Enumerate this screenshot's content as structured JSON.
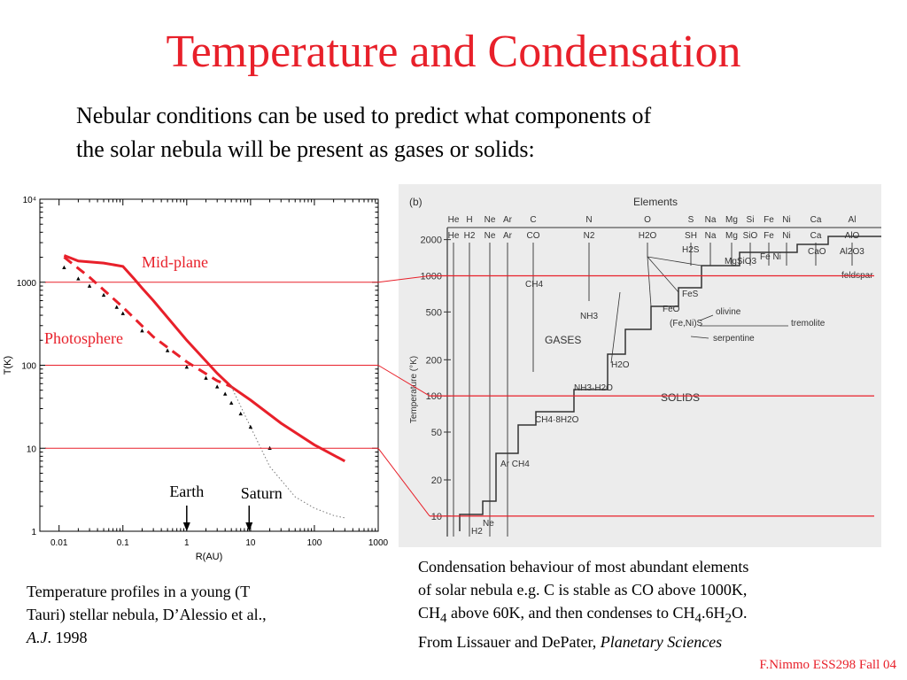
{
  "slide": {
    "title": "Temperature and Condensation",
    "intro_line1": "Nebular conditions can be used to predict what components of",
    "intro_line2": "the solar nebula will be present as gases or solids:",
    "credit": "F.Nimmo ESS298 Fall 04"
  },
  "caption_left": {
    "l1": "Temperature profiles in a young (T",
    "l2": "Tauri) stellar nebula, D’Alessio et al.,",
    "l3_journal": "A.J",
    "l3_rest": ". 1998"
  },
  "caption_right": {
    "l1": "Condensation behaviour of most abundant elements",
    "l2": "of solar nebula e.g. C is stable as CO above 1000K,",
    "l3a": "CH",
    "l3a_sub": "4",
    "l3b": " above 60K, and then condenses to CH",
    "l3b_sub": "4",
    "l3c": ".6H",
    "l3c_sub": "2",
    "l3d": "O.",
    "l4_prefix": "From Lissauer and DePater, ",
    "l4_book": "Planetary Sciences"
  },
  "colors": {
    "accent": "#e8202a",
    "gridline": "#e8202a"
  },
  "chart_data": [
    {
      "type": "line",
      "xlabel": "R(AU)",
      "ylabel": "T(K)",
      "xscale": "log",
      "yscale": "log",
      "xlim": [
        0.005,
        1000
      ],
      "ylim": [
        1,
        10000
      ],
      "x_ticks": [
        "0.01",
        "0.1",
        "1",
        "10",
        "100",
        "1000"
      ],
      "y_ticks": [
        "1",
        "10",
        "100",
        "1000",
        "10⁴"
      ],
      "reference_lines_T": [
        1000,
        100,
        10
      ],
      "annotations": [
        {
          "text": "Mid-plane",
          "color": "#e8202a"
        },
        {
          "text": "Photosphere",
          "color": "#e8202a"
        },
        {
          "text": "Earth",
          "x": 1
        },
        {
          "text": "Saturn",
          "x": 9.5
        }
      ],
      "series": [
        {
          "style": "solid-red",
          "x": [
            0.012,
            0.02,
            0.05,
            0.1,
            0.15,
            0.2,
            0.3,
            1,
            3,
            5,
            10,
            30,
            100,
            300
          ],
          "y": [
            2100,
            1800,
            1700,
            1550,
            1100,
            850,
            600,
            200,
            80,
            55,
            38,
            20,
            11,
            7
          ]
        },
        {
          "style": "dashed-red",
          "x": [
            0.012,
            0.03,
            0.1,
            0.3,
            1,
            3,
            5
          ],
          "y": [
            2000,
            1150,
            500,
            220,
            110,
            65,
            55
          ]
        },
        {
          "style": "dotted-gray",
          "x": [
            5,
            10,
            20,
            50,
            100,
            200,
            300
          ],
          "y": [
            55,
            18,
            6,
            2.6,
            1.9,
            1.55,
            1.45
          ]
        },
        {
          "style": "triangles",
          "x": [
            0.012,
            0.02,
            0.03,
            0.05,
            0.08,
            0.1,
            0.2,
            0.5,
            1,
            2,
            3,
            4,
            5,
            7,
            10,
            20
          ],
          "y": [
            1500,
            1100,
            900,
            700,
            500,
            420,
            260,
            150,
            95,
            70,
            55,
            45,
            35,
            26,
            18,
            10
          ]
        }
      ]
    },
    {
      "type": "diagram",
      "panel_label": "(b)",
      "header": "Elements",
      "ylabel": "Temperature (°K)",
      "yscale": "log",
      "ylim": [
        8,
        2200
      ],
      "y_ticks": [
        2000,
        1000,
        500,
        200,
        100,
        50,
        20,
        10
      ],
      "reference_lines_T": [
        1000,
        100,
        10
      ],
      "elements": [
        "He",
        "H",
        "Ne",
        "Ar",
        "C",
        "N",
        "O",
        "S",
        "Na",
        "Mg",
        "Si",
        "Fe",
        "Ni",
        "Ca",
        "Al"
      ],
      "gas_species": [
        "He",
        "H2",
        "Ne",
        "Ar",
        "CO",
        "N2",
        "H2O",
        "SH",
        "Na",
        "Mg",
        "SiO",
        "Fe",
        "Ni",
        "Ca",
        "AlO"
      ],
      "region_labels": [
        "GASES",
        "SOLIDS"
      ],
      "labels": [
        "CH4",
        "NH3",
        "H2O",
        "NH3·H2O",
        "CH4·8H2O",
        "Ar CH4",
        "Ne",
        "H2",
        "H2S",
        "MgSiO3",
        "Fe Ni",
        "CaO",
        "Al2O3",
        "feldspar",
        "FeS",
        "FeO",
        "(Fe,Ni)S",
        "olivine",
        "serpentine",
        "tremolite"
      ]
    }
  ]
}
